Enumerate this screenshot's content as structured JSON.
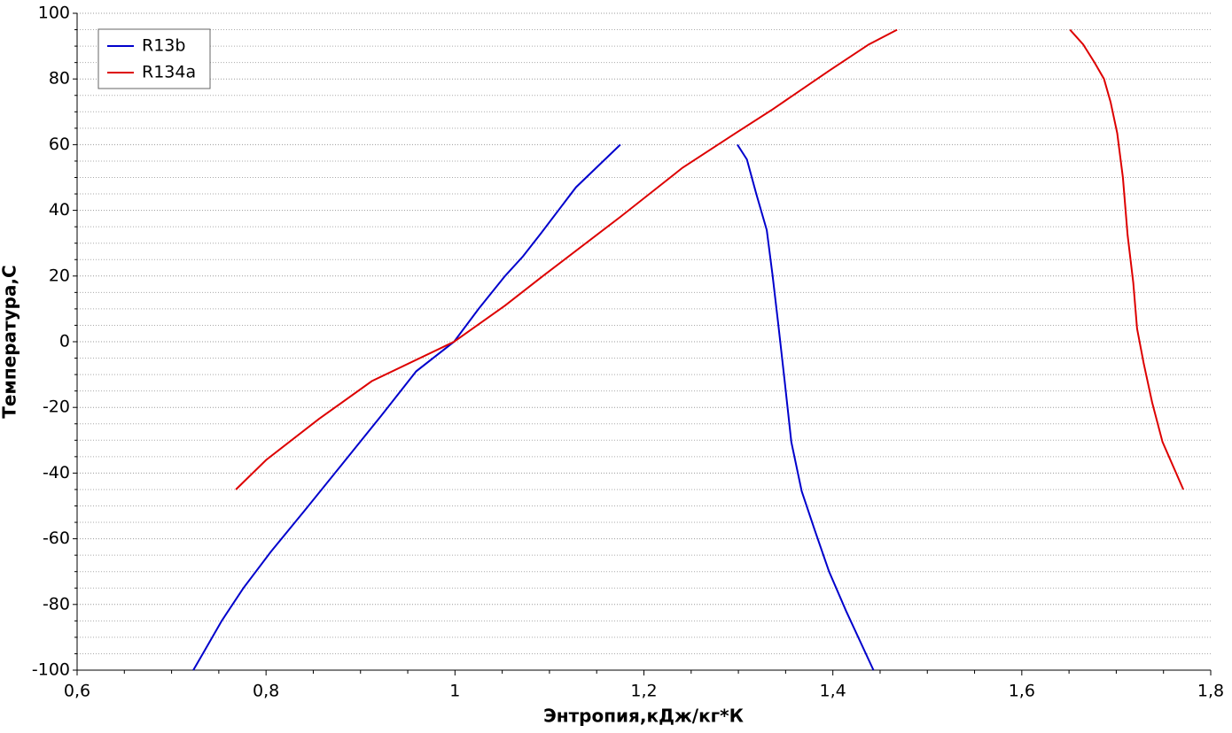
{
  "chart_data": {
    "type": "line",
    "xlabel": "Энтропия,кДж/кг*К",
    "ylabel": "Температура,С",
    "xlim": [
      0.6,
      1.8
    ],
    "xticks": [
      {
        "value": 0.6,
        "label": "0,6"
      },
      {
        "value": 0.8,
        "label": "0,8"
      },
      1,
      {
        "value": 1.2,
        "label": "1,2"
      },
      {
        "value": 1.4,
        "label": "1,4"
      },
      {
        "value": 1.6,
        "label": "1,6"
      },
      {
        "value": 1.8,
        "label": "1,8"
      }
    ],
    "ylim": [
      -100,
      100
    ],
    "yticks": [
      -100,
      -80,
      -60,
      -40,
      -20,
      0,
      20,
      40,
      60,
      80,
      100
    ],
    "grid": true,
    "legend": "upper left",
    "series": [
      {
        "name": "R13b",
        "color": "#0000cc",
        "x": [
          0.723,
          0.733,
          0.753,
          0.776,
          0.805,
          0.842,
          0.88,
          0.922,
          0.959,
          0.999,
          1.025,
          1.053,
          1.072,
          1.091,
          1.128,
          1.175,
          null,
          1.299,
          1.309,
          1.319,
          1.33,
          1.336,
          1.342,
          1.349,
          1.356,
          1.367,
          1.381,
          1.396,
          1.414,
          1.443
        ],
        "values": [
          -100,
          -95,
          -85,
          -75,
          -64,
          -51,
          -37.5,
          -22.5,
          -9,
          0,
          10,
          20,
          26,
          33,
          47,
          60,
          null,
          60,
          55.5,
          45,
          34,
          20.5,
          6,
          -12,
          -30.5,
          -45.5,
          -57.5,
          -70,
          -82,
          -100
        ]
      },
      {
        "name": "R134a",
        "color": "#dd0000",
        "x": [
          0.768,
          0.8,
          0.856,
          0.912,
          0.999,
          1.053,
          1.093,
          1.175,
          1.241,
          1.297,
          1.335,
          1.396,
          1.438,
          1.468,
          null,
          1.651,
          1.665,
          1.677,
          1.687,
          1.694,
          1.701,
          1.707,
          1.712,
          1.718,
          1.722,
          1.729,
          1.738,
          1.749,
          1.771
        ],
        "values": [
          -45,
          -36,
          -23.5,
          -12,
          0,
          11,
          20,
          38,
          53,
          63.5,
          70.5,
          82.5,
          90.5,
          95,
          null,
          95,
          90.5,
          85,
          80,
          73,
          63.5,
          50,
          32.5,
          18,
          4,
          -6.5,
          -18.5,
          -30.5,
          -45
        ]
      }
    ]
  }
}
